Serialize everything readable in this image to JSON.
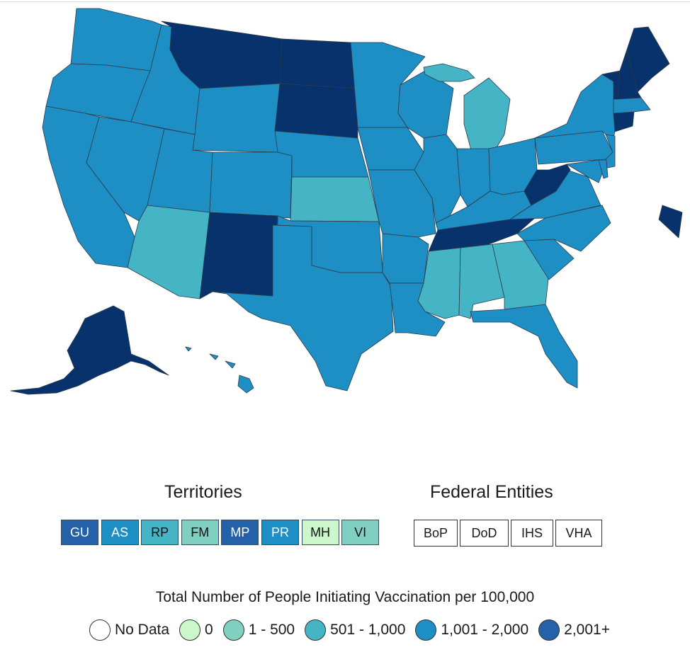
{
  "colors": {
    "no_data": "#ffffff",
    "zero": "#cbf7cb",
    "b1_500": "#7fd0c0",
    "b501_1000": "#45b5c6",
    "b1001_2000": "#1e8fc4",
    "b2001_plus": "#2461a8",
    "darkest_state": "#08326b",
    "alaska": "#08326b"
  },
  "territories": {
    "title": "Territories",
    "items": [
      {
        "code": "GU",
        "color": "#2461a8",
        "text": "#ffffff"
      },
      {
        "code": "AS",
        "color": "#1e8fc4",
        "text": "#ffffff"
      },
      {
        "code": "RP",
        "color": "#45b5c6",
        "text": "#111111"
      },
      {
        "code": "FM",
        "color": "#7fd0c0",
        "text": "#111111"
      },
      {
        "code": "MP",
        "color": "#2461a8",
        "text": "#ffffff"
      },
      {
        "code": "PR",
        "color": "#1e8fc4",
        "text": "#ffffff"
      },
      {
        "code": "MH",
        "color": "#cbf7cb",
        "text": "#111111"
      },
      {
        "code": "VI",
        "color": "#7fd0c0",
        "text": "#111111"
      }
    ]
  },
  "federal": {
    "title": "Federal Entities",
    "items": [
      "BoP",
      "DoD",
      "IHS",
      "VHA"
    ]
  },
  "legend": {
    "title": "Total Number of People Initiating Vaccination per 100,000",
    "items": [
      {
        "label": "No Data",
        "color": "#ffffff"
      },
      {
        "label": "0",
        "color": "#cbf7cb"
      },
      {
        "label": "1 - 500",
        "color": "#7fd0c0"
      },
      {
        "label": "501 - 1,000",
        "color": "#45b5c6"
      },
      {
        "label": "1,001 - 2,000",
        "color": "#1e8fc4"
      },
      {
        "label": "2,001+",
        "color": "#2461a8"
      }
    ]
  },
  "state_colors": {
    "WA": "#1e8fc4",
    "OR": "#1e8fc4",
    "CA": "#1e8fc4",
    "ID": "#1e8fc4",
    "NV": "#1e8fc4",
    "MT": "#08326b",
    "WY": "#1e8fc4",
    "UT": "#1e8fc4",
    "AZ": "#45b5c6",
    "CO": "#1e8fc4",
    "NM": "#08326b",
    "ND": "#08326b",
    "SD": "#08326b",
    "NE": "#1e8fc4",
    "KS": "#45b5c6",
    "OK": "#1e8fc4",
    "TX": "#1e8fc4",
    "MN": "#1e8fc4",
    "IA": "#1e8fc4",
    "MO": "#1e8fc4",
    "AR": "#1e8fc4",
    "LA": "#1e8fc4",
    "WI": "#1e8fc4",
    "IL": "#1e8fc4",
    "MI": "#45b5c6",
    "IN": "#1e8fc4",
    "OH": "#1e8fc4",
    "KY": "#1e8fc4",
    "TN": "#08326b",
    "MS": "#45b5c6",
    "AL": "#45b5c6",
    "GA": "#45b5c6",
    "FL": "#1e8fc4",
    "SC": "#1e8fc4",
    "NC": "#1e8fc4",
    "VA": "#1e8fc4",
    "WV": "#08326b",
    "PA": "#1e8fc4",
    "NY": "#1e8fc4",
    "NJ": "#1e8fc4",
    "DE": "#1e8fc4",
    "MD": "#1e8fc4",
    "CT": "#08326b",
    "MA": "#1e8fc4",
    "VT": "#08326b",
    "NH": "#08326b",
    "ME": "#08326b",
    "AK": "#08326b",
    "HI": "#1e8fc4"
  }
}
